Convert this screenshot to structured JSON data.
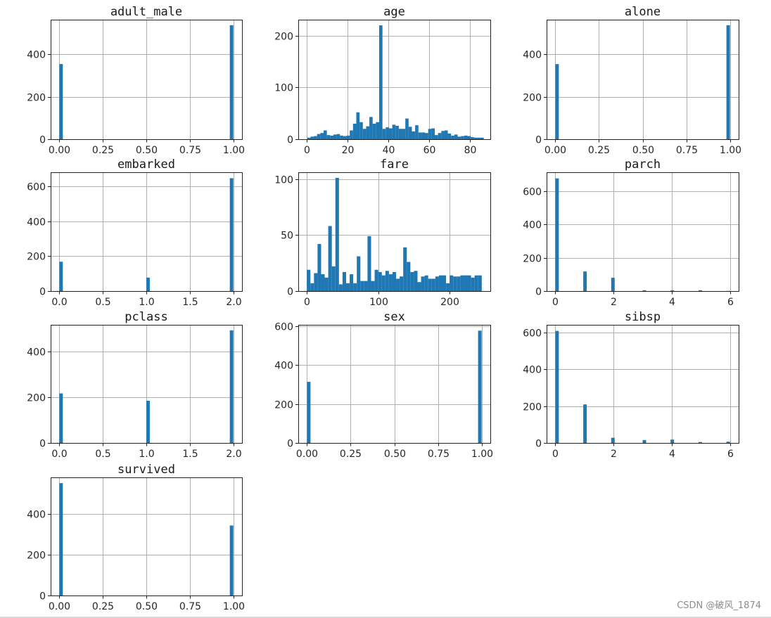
{
  "watermark": "CSDN @破风_1874",
  "chart_data": [
    {
      "type": "bar",
      "title": "adult_male",
      "xlabel": "",
      "ylabel": "",
      "bin_width": 0.02,
      "xlim": [
        -0.05,
        1.05
      ],
      "ylim": [
        0,
        563
      ],
      "xticks": [
        0,
        0.25,
        0.5,
        0.75,
        1.0
      ],
      "xtick_labels": [
        "0.00",
        "0.25",
        "0.50",
        "0.75",
        "1.00"
      ],
      "yticks": [
        0,
        200,
        400
      ],
      "ytick_labels": [
        "0",
        "200",
        "400"
      ],
      "x": [
        0,
        0.98
      ],
      "values": [
        354,
        537
      ],
      "grid": true
    },
    {
      "type": "bar",
      "title": "age",
      "xlabel": "",
      "ylabel": "",
      "bin_width": 1.6,
      "xlim": [
        -4,
        90
      ],
      "ylim": [
        0,
        231
      ],
      "xticks": [
        0,
        20,
        40,
        60,
        80
      ],
      "xtick_labels": [
        "0",
        "20",
        "40",
        "60",
        "80"
      ],
      "yticks": [
        0,
        100,
        200
      ],
      "ytick_labels": [
        "0",
        "100",
        "200"
      ],
      "x": [
        0.4,
        2.0,
        3.6,
        5.2,
        6.8,
        8.4,
        10.0,
        11.6,
        13.2,
        14.8,
        16.4,
        18.0,
        19.6,
        21.2,
        22.8,
        24.4,
        26.0,
        27.6,
        29.2,
        30.8,
        32.4,
        34.0,
        35.6,
        37.2,
        38.8,
        40.4,
        42.0,
        43.6,
        45.2,
        46.8,
        48.4,
        50.0,
        51.6,
        53.2,
        54.8,
        56.4,
        58.0,
        59.6,
        61.2,
        62.8,
        64.4,
        66.0,
        67.6,
        69.2,
        70.8,
        72.4,
        74.0,
        75.6,
        77.2,
        78.8,
        80.4,
        82.0,
        83.6,
        85.2
      ],
      "values": [
        3,
        5,
        6,
        10,
        12,
        17,
        8,
        7,
        9,
        10,
        7,
        6,
        7,
        17,
        30,
        52,
        33,
        20,
        25,
        43,
        30,
        33,
        220,
        20,
        23,
        21,
        28,
        26,
        20,
        20,
        40,
        24,
        15,
        27,
        13,
        13,
        12,
        20,
        21,
        8,
        12,
        16,
        17,
        11,
        7,
        9,
        5,
        6,
        7,
        6,
        4,
        3,
        3,
        3
      ],
      "grid": true
    },
    {
      "type": "bar",
      "title": "alone",
      "xlabel": "",
      "ylabel": "",
      "bin_width": 0.02,
      "xlim": [
        -0.05,
        1.05
      ],
      "ylim": [
        0,
        563
      ],
      "xticks": [
        0,
        0.25,
        0.5,
        0.75,
        1.0
      ],
      "xtick_labels": [
        "0.00",
        "0.25",
        "0.50",
        "0.75",
        "1.00"
      ],
      "yticks": [
        0,
        200,
        400
      ],
      "ytick_labels": [
        "0",
        "200",
        "400"
      ],
      "x": [
        0,
        0.98
      ],
      "values": [
        354,
        537
      ],
      "grid": true
    },
    {
      "type": "bar",
      "title": "embarked",
      "xlabel": "",
      "ylabel": "",
      "bin_width": 0.04,
      "xlim": [
        -0.1,
        2.1
      ],
      "ylim": [
        0,
        680
      ],
      "xticks": [
        0,
        0.5,
        1.0,
        1.5,
        2.0
      ],
      "xtick_labels": [
        "0.0",
        "0.5",
        "1.0",
        "1.5",
        "2.0"
      ],
      "yticks": [
        0,
        200,
        400,
        600
      ],
      "ytick_labels": [
        "0",
        "200",
        "400",
        "600"
      ],
      "x": [
        0,
        1.0,
        1.96
      ],
      "values": [
        168,
        77,
        646
      ],
      "grid": true
    },
    {
      "type": "bar",
      "title": "fare",
      "xlabel": "",
      "ylabel": "",
      "bin_width": 5.0,
      "xlim": [
        -12,
        257
      ],
      "ylim": [
        0,
        106
      ],
      "xticks": [
        0,
        100,
        200
      ],
      "xtick_labels": [
        "0",
        "100",
        "200"
      ],
      "yticks": [
        0,
        50,
        100
      ],
      "ytick_labels": [
        "0",
        "50",
        "100"
      ],
      "x": [
        0,
        5,
        10,
        15,
        20,
        25,
        30,
        35,
        40,
        45,
        50,
        55,
        60,
        65,
        70,
        75,
        80,
        85,
        90,
        95,
        100,
        105,
        110,
        115,
        120,
        125,
        130,
        135,
        140,
        145,
        150,
        155,
        160,
        165,
        170,
        175,
        180,
        185,
        190,
        195,
        200,
        205,
        210,
        215,
        220,
        225,
        230,
        235,
        240
      ],
      "values": [
        19,
        7,
        16,
        42,
        15,
        12,
        58,
        22,
        101,
        6,
        17,
        7,
        15,
        7,
        31,
        9,
        9,
        49,
        9,
        19,
        17,
        14,
        18,
        15,
        17,
        11,
        13,
        39,
        26,
        17,
        18,
        8,
        13,
        14,
        11,
        11,
        13,
        14,
        14,
        7,
        14,
        13,
        13,
        14,
        14,
        14,
        12,
        14,
        14
      ],
      "grid": true
    },
    {
      "type": "bar",
      "title": "parch",
      "xlabel": "",
      "ylabel": "",
      "bin_width": 0.12,
      "xlim": [
        -0.3,
        6.3
      ],
      "ylim": [
        0,
        715
      ],
      "xticks": [
        0,
        2,
        4,
        6
      ],
      "xtick_labels": [
        "0",
        "2",
        "4",
        "6"
      ],
      "yticks": [
        0,
        200,
        400,
        600
      ],
      "ytick_labels": [
        "0",
        "200",
        "400",
        "600"
      ],
      "x": [
        0,
        0.96,
        1.92,
        3.0,
        3.96,
        4.92,
        5.88
      ],
      "values": [
        678,
        118,
        80,
        5,
        4,
        5,
        1
      ],
      "grid": true
    },
    {
      "type": "bar",
      "title": "pclass",
      "xlabel": "",
      "ylabel": "",
      "bin_width": 0.04,
      "xlim": [
        -0.1,
        2.1
      ],
      "ylim": [
        0,
        515
      ],
      "xticks": [
        0,
        0.5,
        1.0,
        1.5,
        2.0
      ],
      "xtick_labels": [
        "0.0",
        "0.5",
        "1.0",
        "1.5",
        "2.0"
      ],
      "yticks": [
        0,
        200,
        400
      ],
      "ytick_labels": [
        "0",
        "200",
        "400"
      ],
      "x": [
        0,
        1.0,
        1.96
      ],
      "values": [
        216,
        184,
        491
      ],
      "grid": true
    },
    {
      "type": "bar",
      "title": "sex",
      "xlabel": "",
      "ylabel": "",
      "bin_width": 0.02,
      "xlim": [
        -0.05,
        1.05
      ],
      "ylim": [
        0,
        607
      ],
      "xticks": [
        0,
        0.25,
        0.5,
        0.75,
        1.0
      ],
      "xtick_labels": [
        "0.00",
        "0.25",
        "0.50",
        "0.75",
        "1.00"
      ],
      "yticks": [
        0,
        200,
        400,
        600
      ],
      "ytick_labels": [
        "0",
        "200",
        "400",
        "600"
      ],
      "x": [
        0,
        0.98
      ],
      "values": [
        314,
        577
      ],
      "grid": true
    },
    {
      "type": "bar",
      "title": "sibsp",
      "xlabel": "",
      "ylabel": "",
      "bin_width": 0.12,
      "xlim": [
        -0.3,
        6.3
      ],
      "ylim": [
        0,
        641
      ],
      "xticks": [
        0,
        2,
        4,
        6
      ],
      "xtick_labels": [
        "0",
        "2",
        "4",
        "6"
      ],
      "yticks": [
        0,
        200,
        400,
        600
      ],
      "ytick_labels": [
        "0",
        "200",
        "400",
        "600"
      ],
      "x": [
        0,
        0.96,
        1.92,
        3.0,
        3.96,
        4.92,
        5.88
      ],
      "values": [
        608,
        209,
        28,
        16,
        18,
        5,
        7
      ],
      "grid": true
    },
    {
      "type": "bar",
      "title": "survived",
      "xlabel": "",
      "ylabel": "",
      "bin_width": 0.02,
      "xlim": [
        -0.05,
        1.05
      ],
      "ylim": [
        0,
        577
      ],
      "xticks": [
        0,
        0.25,
        0.5,
        0.75,
        1.0
      ],
      "xtick_labels": [
        "0.00",
        "0.25",
        "0.50",
        "0.75",
        "1.00"
      ],
      "yticks": [
        0,
        200,
        400
      ],
      "ytick_labels": [
        "0",
        "200",
        "400"
      ],
      "x": [
        0,
        0.98
      ],
      "values": [
        549,
        342
      ],
      "grid": true
    }
  ],
  "colors": {
    "bar": "#1f77b4",
    "grid": "#b0b0b0",
    "frame": "#222222"
  }
}
